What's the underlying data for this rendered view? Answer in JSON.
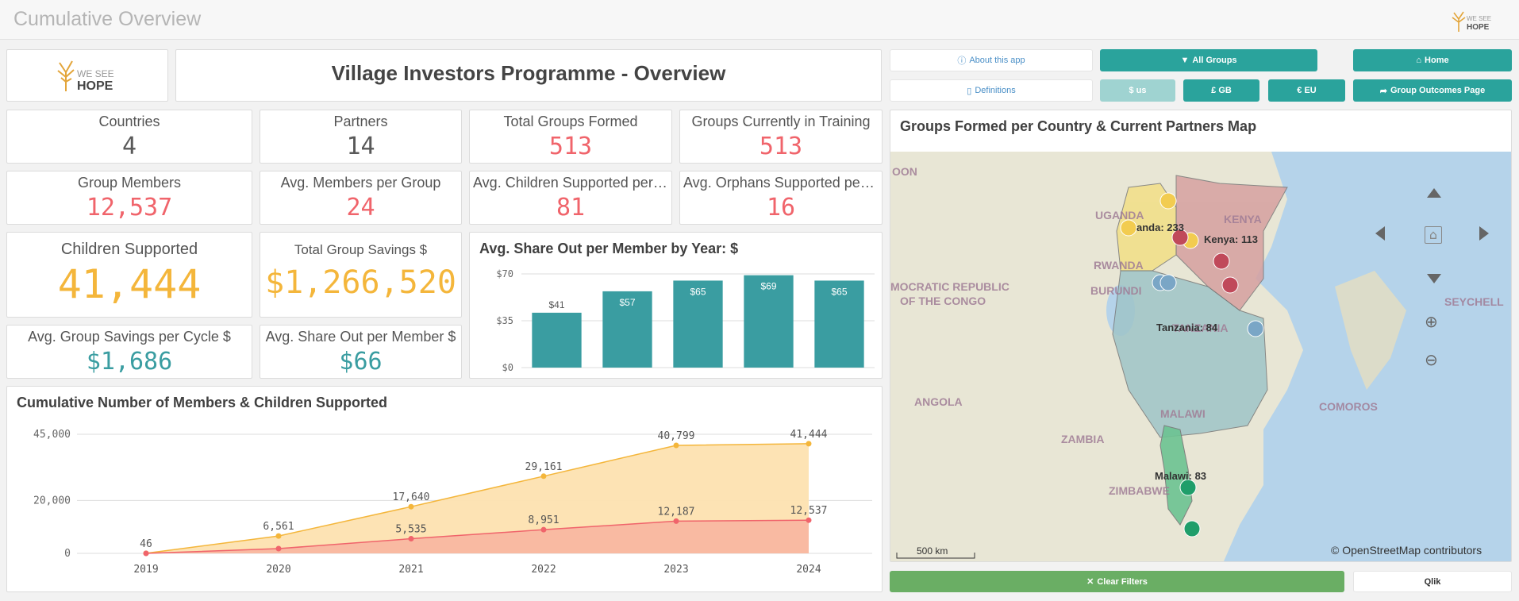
{
  "app": {
    "title": "Cumulative Overview",
    "brand_line1": "WE SEE",
    "brand_line2": "HOPE"
  },
  "header": {
    "title": "Village Investors Programme - Overview"
  },
  "kpis": {
    "countries": {
      "label": "Countries",
      "value": "4"
    },
    "partners": {
      "label": "Partners",
      "value": "14"
    },
    "total_groups": {
      "label": "Total Groups Formed",
      "value": "513"
    },
    "groups_training": {
      "label": "Groups Currently in Training",
      "value": "513"
    },
    "group_members": {
      "label": "Group Members",
      "value": "12,537"
    },
    "avg_members": {
      "label": "Avg. Members per Group",
      "value": "24"
    },
    "avg_children": {
      "label": "Avg. Children Supported per G...",
      "value": "81"
    },
    "avg_orphans": {
      "label": "Avg. Orphans Supported per ...",
      "value": "16"
    },
    "children_supported": {
      "label": "Children Supported",
      "value": "41,444"
    },
    "total_savings": {
      "label": "Total Group Savings $",
      "value": "$1,266,520"
    },
    "avg_savings_cycle": {
      "label": "Avg. Group Savings per Cycle $",
      "value": "$1,686"
    },
    "avg_shareout": {
      "label": "Avg. Share Out per Member $",
      "value": "$66"
    }
  },
  "buttons": {
    "about": "About this app",
    "all_groups": "All Groups",
    "home": "Home",
    "definitions": "Definitions",
    "usd": "$ us",
    "gbp": "£ GB",
    "eur": "€ EU",
    "group_outcomes": "Group Outcomes Page",
    "clear_filters": "Clear Filters",
    "qlik": "Qlik"
  },
  "colors": {
    "accent": "#2aa39c",
    "red": "#f0646b",
    "orange": "#f4b63b",
    "teal_bar": "#3a9da1"
  },
  "chart_data": [
    {
      "type": "bar",
      "title": "Avg. Share Out per Member by Year: $",
      "categories": [
        "",
        "",
        "",
        "",
        ""
      ],
      "values": [
        41,
        57,
        65,
        69,
        65
      ],
      "value_labels": [
        "$41",
        "$57",
        "$65",
        "$69",
        "$65"
      ],
      "y_ticks": [
        "$70",
        "$35",
        "$0"
      ],
      "ylim": [
        0,
        70
      ]
    },
    {
      "type": "area",
      "title": "Cumulative Number of Members & Children Supported",
      "x": [
        "2019",
        "2020",
        "2021",
        "2022",
        "2023",
        "2024"
      ],
      "series": [
        {
          "values": [
            46,
            6561,
            17640,
            29161,
            40799,
            41444
          ],
          "labels": [
            "46",
            "6,561",
            "17,640",
            "29,161",
            "40,799",
            "41,444"
          ],
          "color": "#f4b63b"
        },
        {
          "values": [
            0,
            1800,
            5535,
            8951,
            12187,
            12537
          ],
          "labels": [
            "",
            "",
            "5,535",
            "8,951",
            "12,187",
            "12,537"
          ],
          "color": "#f0646b"
        }
      ],
      "y_ticks": [
        "45,000",
        "20,000",
        "0"
      ],
      "ylim": [
        0,
        45000
      ]
    }
  ],
  "map": {
    "title": "Groups Formed per Country & Current Partners Map",
    "country_labels": [
      "OON",
      "UGANDA",
      "KENYA",
      "RWANDA",
      "BURUNDI",
      "MOCRATIC REPUBLIC",
      "OF THE CONGO",
      "TANZANIA",
      "ANGOLA",
      "MALAWI",
      "ZAMBIA",
      "COMOROS",
      "SEYCHELL",
      "ZIMBABWE"
    ],
    "data_labels": [
      "anda: 233",
      "Kenya: 113",
      "Tanzania: 84",
      "Malawi: 83"
    ],
    "scale": "500 km",
    "attribution": "© OpenStreetMap contributors"
  }
}
